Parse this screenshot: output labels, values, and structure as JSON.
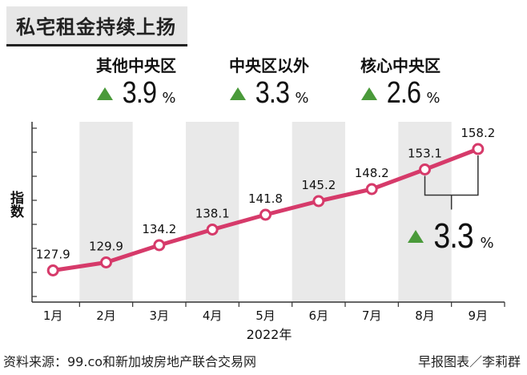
{
  "title": "私宅租金持续上扬",
  "kpis": [
    {
      "label": "其他中央区",
      "value": "3.9",
      "unit": "%"
    },
    {
      "label": "中央区以外",
      "value": "3.3",
      "unit": "%"
    },
    {
      "label": "核心中央区",
      "value": "2.6",
      "unit": "%"
    }
  ],
  "change_callout": {
    "value": "3.3",
    "unit": "%"
  },
  "colors": {
    "line": "#d63a6a",
    "band": "#e9e9e9",
    "up": "#4a9a3a",
    "marker_fill": "#ffffff"
  },
  "chart_data": {
    "type": "line",
    "categories": [
      "1月",
      "2月",
      "3月",
      "4月",
      "5月",
      "6月",
      "7月",
      "8月",
      "9月"
    ],
    "values": [
      127.9,
      129.9,
      134.2,
      138.1,
      141.8,
      145.2,
      148.2,
      153.1,
      158.2
    ],
    "value_labels": [
      "127.9",
      "129.9",
      "134.2",
      "138.1",
      "141.8",
      "145.2",
      "148.2",
      "153.1",
      "158.2"
    ],
    "xlabel": "2022年",
    "ylabel": "指数",
    "ylim": [
      120,
      165
    ],
    "shaded_categories": [
      1,
      3,
      5,
      7
    ],
    "grid": false
  },
  "footer": {
    "source": "资料来源：99.co和新加坡房地产联合交易网",
    "credit": "早报图表／李莉群"
  }
}
